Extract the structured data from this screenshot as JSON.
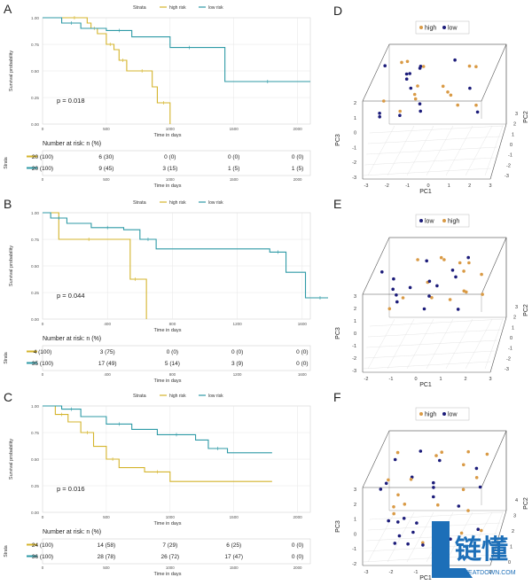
{
  "colors": {
    "high": "#d4b42c",
    "low": "#2e9aa6",
    "pca_high": "#d99a45",
    "pca_low": "#1c1c7a"
  },
  "km_panels": [
    {
      "letter": "A",
      "legend_title": "Strata",
      "legend_items": [
        "high risk",
        "low risk"
      ],
      "ylabel": "Survival probability",
      "xlabel": "Time in days",
      "y_ticks": [
        "1.00",
        "0.75",
        "0.50",
        "0.25",
        "0.00"
      ],
      "x_ticks": [
        "0",
        "500",
        "1000",
        "1500",
        "2000"
      ],
      "xmax": 2100,
      "pvalue": "p = 0.018",
      "risk_title": "Number at risk: n (%)",
      "strata_label": "Strata",
      "risk_rows": [
        [
          "20 (100)",
          "6 (30)",
          "0 (0)",
          "0 (0)",
          "0 (0)"
        ],
        [
          "20 (100)",
          "9 (45)",
          "3 (15)",
          "1 (5)",
          "1 (5)"
        ]
      ],
      "chart_data": {
        "type": "line",
        "series": [
          {
            "name": "high risk",
            "x": [
              0,
              150,
              350,
              380,
              430,
              500,
              560,
              600,
              660,
              700,
              860,
              900,
              1000
            ],
            "y": [
              1.0,
              1.0,
              0.95,
              0.9,
              0.85,
              0.75,
              0.7,
              0.6,
              0.5,
              0.5,
              0.35,
              0.2,
              0.0
            ]
          },
          {
            "name": "low risk",
            "x": [
              0,
              150,
              300,
              500,
              700,
              1000,
              1300,
              1430,
              2100
            ],
            "y": [
              1.0,
              0.95,
              0.9,
              0.88,
              0.82,
              0.72,
              0.72,
              0.4,
              0.4
            ]
          }
        ]
      }
    },
    {
      "letter": "B",
      "legend_title": "Strata",
      "legend_items": [
        "high risk",
        "low risk"
      ],
      "ylabel": "Survival probability",
      "xlabel": "Time in days",
      "y_ticks": [
        "1.00",
        "0.75",
        "0.50",
        "0.25",
        "0.00"
      ],
      "x_ticks": [
        "0",
        "400",
        "800",
        "1200",
        "1600"
      ],
      "xmax": 1650,
      "pvalue": "p = 0.044",
      "risk_title": "Number at risk: n (%)",
      "strata_label": "Strata",
      "risk_rows": [
        [
          "4 (100)",
          "3 (75)",
          "0 (0)",
          "0 (0)",
          "0 (0)"
        ],
        [
          "35 (100)",
          "17 (49)",
          "5 (14)",
          "3 (9)",
          "0 (0)"
        ]
      ],
      "chart_data": {
        "type": "line",
        "series": [
          {
            "name": "high risk",
            "x": [
              0,
              100,
              470,
              540,
              600,
              640
            ],
            "y": [
              1.0,
              0.75,
              0.75,
              0.375,
              0.375,
              0.0
            ]
          },
          {
            "name": "low risk",
            "x": [
              0,
              50,
              150,
              300,
              500,
              600,
              700,
              1400,
              1500,
              1620,
              1800
            ],
            "y": [
              1.0,
              0.95,
              0.9,
              0.86,
              0.84,
              0.75,
              0.66,
              0.63,
              0.44,
              0.2,
              0.2
            ]
          }
        ]
      }
    },
    {
      "letter": "C",
      "legend_title": "Strata",
      "legend_items": [
        "high risk",
        "low risk"
      ],
      "ylabel": "Survival probability",
      "xlabel": "Time in days",
      "y_ticks": [
        "1.00",
        "0.75",
        "0.50",
        "0.25",
        "0.00"
      ],
      "x_ticks": [
        "0",
        "500",
        "1000",
        "1500",
        "2000"
      ],
      "xmax": 2100,
      "pvalue": "p = 0.016",
      "risk_title": "Number at risk: n (%)",
      "strata_label": "Strata",
      "risk_rows": [
        [
          "24 (100)",
          "14 (58)",
          "7 (29)",
          "6 (25)",
          "0 (0)"
        ],
        [
          "36 (100)",
          "28 (78)",
          "26 (72)",
          "17 (47)",
          "0 (0)"
        ]
      ],
      "chart_data": {
        "type": "line",
        "series": [
          {
            "name": "high risk",
            "x": [
              0,
              100,
              200,
              300,
              400,
              500,
              600,
              800,
              1000,
              1800
            ],
            "y": [
              1.0,
              0.92,
              0.85,
              0.75,
              0.62,
              0.5,
              0.42,
              0.38,
              0.29,
              0.29
            ]
          },
          {
            "name": "low risk",
            "x": [
              0,
              150,
              300,
              500,
              700,
              900,
              1200,
              1300,
              1450,
              1800
            ],
            "y": [
              1.0,
              0.97,
              0.9,
              0.83,
              0.78,
              0.73,
              0.68,
              0.6,
              0.56,
              0.56
            ]
          }
        ]
      }
    }
  ],
  "pca_panels": [
    {
      "letter": "D",
      "legend": [
        "high",
        "low"
      ],
      "xlabel": "PC1",
      "ylabel": "PC3",
      "zlabel": "PC2",
      "x_ticks": [
        "-3",
        "-2",
        "-1",
        "0",
        "1",
        "2",
        "3"
      ],
      "y_ticks": [
        "2",
        "1",
        "0",
        "-1",
        "-2",
        "-3"
      ],
      "z_ticks": [
        "3",
        "2",
        "1",
        "0",
        "-1",
        "-2",
        "-3"
      ]
    },
    {
      "letter": "E",
      "legend": [
        "low",
        "high"
      ],
      "xlabel": "PC1",
      "ylabel": "PC3",
      "zlabel": "PC2",
      "x_ticks": [
        "-2",
        "-1",
        "0",
        "1",
        "2",
        "3"
      ],
      "y_ticks": [
        "3",
        "2",
        "1",
        "0",
        "-1",
        "-2",
        "-3"
      ],
      "z_ticks": [
        "3",
        "2",
        "1",
        "0",
        "-1",
        "-2",
        "-3"
      ]
    },
    {
      "letter": "F",
      "legend": [
        "high",
        "low"
      ],
      "xlabel": "PC1",
      "ylabel": "PC3",
      "zlabel": "PC2",
      "x_ticks": [
        "-3",
        "-2",
        "-1",
        "0",
        "1",
        "2"
      ],
      "y_ticks": [
        "3",
        "2",
        "1",
        "0",
        "-1",
        "-2"
      ],
      "z_ticks": [
        "4",
        "3",
        "2",
        "1",
        "0"
      ]
    }
  ],
  "watermark": {
    "text": "链懂",
    "sub": "NEATDOWN.COM"
  }
}
